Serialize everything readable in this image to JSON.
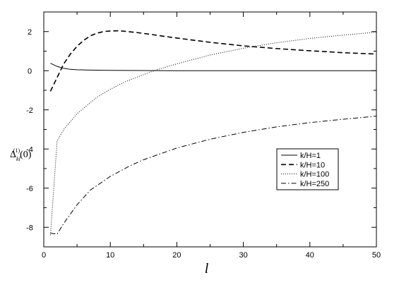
{
  "chart_data": {
    "type": "line",
    "title": "",
    "xlabel": "l",
    "ylabel": "Δ_{kl}^{(1)}(0)",
    "ylabel_parts": {
      "main": "Δ",
      "sub": "kl",
      "sup": "(1)",
      "arg": "(0)"
    },
    "xlim": [
      0,
      50
    ],
    "ylim": [
      -9,
      3
    ],
    "xticks": [
      0,
      10,
      20,
      30,
      40,
      50
    ],
    "yticks": [
      -8,
      -6,
      -4,
      -2,
      0,
      2
    ],
    "xtick_labels": [
      "0",
      "10",
      "20",
      "30",
      "40",
      "50"
    ],
    "ytick_labels": [
      "-8",
      "-6",
      "-4",
      "-2",
      "0",
      "2"
    ],
    "grid": false,
    "legend_position": "center-right",
    "series": [
      {
        "name": "k/H=1",
        "style": "solid",
        "x": [
          1,
          2,
          3,
          4,
          5,
          7,
          10,
          15,
          20,
          30,
          40,
          50
        ],
        "y": [
          0.38,
          0.22,
          0.12,
          0.07,
          0.05,
          0.03,
          0.02,
          0.01,
          0.0,
          0.0,
          0.0,
          0.0
        ]
      },
      {
        "name": "k/H=10",
        "style": "dashed",
        "x": [
          1,
          2,
          3,
          4,
          5,
          6,
          7,
          8,
          9,
          10,
          11,
          12,
          14,
          16,
          18,
          20,
          25,
          30,
          35,
          40,
          45,
          50
        ],
        "y": [
          -1.05,
          -0.35,
          0.35,
          0.85,
          1.25,
          1.55,
          1.78,
          1.92,
          2.0,
          2.03,
          2.04,
          2.02,
          1.95,
          1.86,
          1.76,
          1.67,
          1.45,
          1.27,
          1.13,
          1.02,
          0.92,
          0.85
        ]
      },
      {
        "name": "k/H=100",
        "style": "dotted",
        "x": [
          1,
          2,
          3,
          5,
          8,
          10,
          12,
          15,
          17,
          20,
          25,
          30,
          35,
          40,
          45,
          50
        ],
        "y": [
          -8.4,
          -3.6,
          -3.0,
          -2.2,
          -1.35,
          -0.95,
          -0.6,
          -0.2,
          0.05,
          0.35,
          0.8,
          1.15,
          1.43,
          1.65,
          1.82,
          1.97
        ]
      },
      {
        "name": "k/H=250",
        "style": "dashdot",
        "x": [
          1,
          2,
          3,
          5,
          7,
          10,
          13,
          15,
          20,
          25,
          30,
          35,
          40,
          45,
          50
        ],
        "y": [
          -8.3,
          -8.35,
          -7.8,
          -6.85,
          -6.1,
          -5.4,
          -4.85,
          -4.55,
          -3.95,
          -3.5,
          -3.15,
          -2.87,
          -2.65,
          -2.48,
          -2.32
        ]
      }
    ]
  }
}
